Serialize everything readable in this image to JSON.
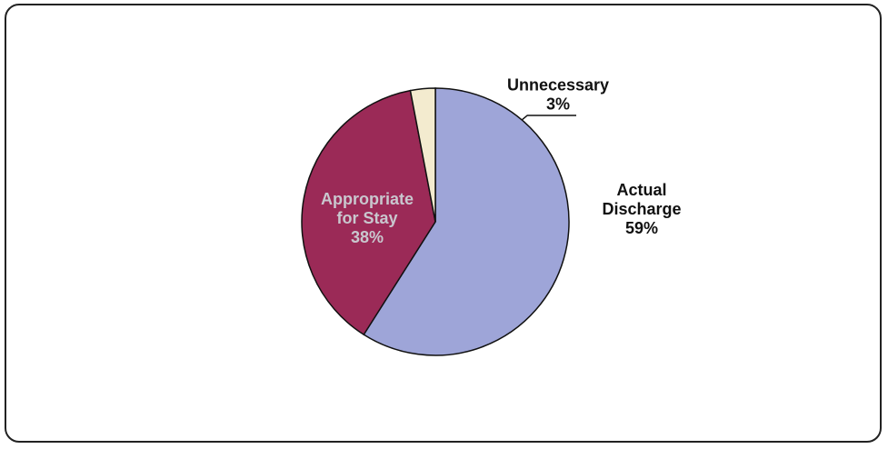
{
  "chart_data": {
    "type": "pie",
    "title": "",
    "start_angle_deg": 0,
    "direction": "clockwise",
    "slices": [
      {
        "label_lines": [
          "Actual",
          "Discharge"
        ],
        "value": 59,
        "value_label": "59%",
        "color": "#9ea5d8",
        "label_color": "#111111"
      },
      {
        "label_lines": [
          "Appropriate",
          "for Stay"
        ],
        "value": 38,
        "value_label": "38%",
        "color": "#9b2a57",
        "label_color": "#c9c7ce"
      },
      {
        "label_lines": [
          "Unnecessary"
        ],
        "value": 3,
        "value_label": "3%",
        "color": "#f3ebcf",
        "label_color": "#111111"
      }
    ]
  }
}
